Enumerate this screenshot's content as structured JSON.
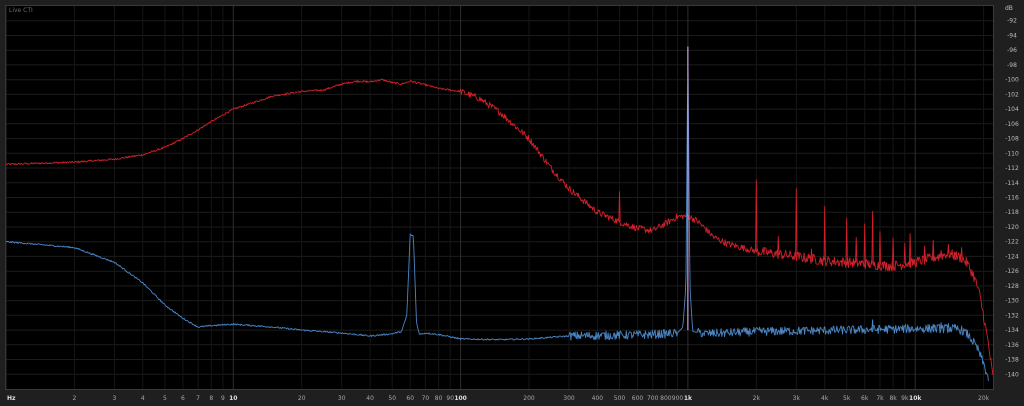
{
  "window": {
    "title": "Live CTI"
  },
  "chart_data": {
    "type": "line",
    "title": "Live CTI",
    "ylabel": "dB",
    "xscale": "log",
    "xlim": [
      1,
      22000
    ],
    "ylim": [
      -142,
      -90
    ],
    "grid": true,
    "legend": "none",
    "colors": {
      "red": "#d0202a",
      "blue": "#4a86c6"
    },
    "x_ticks": [
      {
        "v": 1,
        "label": "Hz",
        "major": true
      },
      {
        "v": 2,
        "label": "2"
      },
      {
        "v": 3,
        "label": "3"
      },
      {
        "v": 4,
        "label": "4"
      },
      {
        "v": 5,
        "label": "5"
      },
      {
        "v": 6,
        "label": "6"
      },
      {
        "v": 7,
        "label": "7"
      },
      {
        "v": 8,
        "label": "8"
      },
      {
        "v": 9,
        "label": "9"
      },
      {
        "v": 10,
        "label": "10",
        "major": true
      },
      {
        "v": 20,
        "label": "20"
      },
      {
        "v": 30,
        "label": "30"
      },
      {
        "v": 40,
        "label": "40"
      },
      {
        "v": 50,
        "label": "50"
      },
      {
        "v": 60,
        "label": "60"
      },
      {
        "v": 70,
        "label": "70"
      },
      {
        "v": 80,
        "label": "80"
      },
      {
        "v": 90,
        "label": "90"
      },
      {
        "v": 100,
        "label": "100",
        "major": true
      },
      {
        "v": 200,
        "label": "200"
      },
      {
        "v": 300,
        "label": "300"
      },
      {
        "v": 400,
        "label": "400"
      },
      {
        "v": 500,
        "label": "500"
      },
      {
        "v": 600,
        "label": "600"
      },
      {
        "v": 700,
        "label": "700"
      },
      {
        "v": 800,
        "label": "800"
      },
      {
        "v": 900,
        "label": "900"
      },
      {
        "v": 1000,
        "label": "1k",
        "major": true
      },
      {
        "v": 2000,
        "label": "2k"
      },
      {
        "v": 3000,
        "label": "3k"
      },
      {
        "v": 4000,
        "label": "4k"
      },
      {
        "v": 5000,
        "label": "5k"
      },
      {
        "v": 6000,
        "label": "6k"
      },
      {
        "v": 7000,
        "label": "7k"
      },
      {
        "v": 8000,
        "label": "8k"
      },
      {
        "v": 9000,
        "label": "9k"
      },
      {
        "v": 10000,
        "label": "10k",
        "major": true
      },
      {
        "v": 20000,
        "label": "20k"
      }
    ],
    "y_ticks": [
      -92,
      -94,
      -96,
      -98,
      -100,
      -102,
      -104,
      -106,
      -108,
      -110,
      -112,
      -114,
      -116,
      -118,
      -120,
      -122,
      -124,
      -126,
      -128,
      -130,
      -132,
      -134,
      -136,
      -138,
      -140
    ],
    "series": [
      {
        "color": "#d0202a",
        "x": [
          1,
          2,
          3,
          4,
          5,
          6,
          7,
          8,
          9,
          10,
          12,
          15,
          20,
          25,
          30,
          35,
          40,
          45,
          50,
          55,
          60,
          70,
          80,
          90,
          100,
          120,
          150,
          200,
          250,
          300,
          400,
          500,
          600,
          700,
          800,
          900,
          1000,
          1100,
          1200,
          1300,
          1500,
          2000,
          3000,
          4000,
          5000,
          6000,
          7000,
          8000,
          9000,
          10000,
          12000,
          14000,
          16000,
          17000,
          18000,
          19000,
          20000,
          21000,
          22000
        ],
        "y": [
          -111.5,
          -111.2,
          -110.8,
          -110.2,
          -109.2,
          -108,
          -106.8,
          -105.7,
          -104.8,
          -104,
          -103.2,
          -102.2,
          -101.6,
          -101.4,
          -100.6,
          -100.2,
          -100.3,
          -100,
          -100.4,
          -100.6,
          -100.2,
          -100.7,
          -101.2,
          -101.4,
          -101.6,
          -102.5,
          -104.5,
          -108,
          -112,
          -114.8,
          -118,
          -119.3,
          -120.2,
          -120.5,
          -119.5,
          -118.6,
          -118.5,
          -119.2,
          -120.3,
          -121.4,
          -122.3,
          -123.3,
          -124,
          -124.6,
          -124.8,
          -125,
          -125.2,
          -125.3,
          -125,
          -124.8,
          -124.2,
          -123.6,
          -124.2,
          -125,
          -126.5,
          -128.5,
          -132,
          -136,
          -140.5
        ]
      },
      {
        "color": "#4a86c6",
        "x": [
          1,
          2,
          3,
          4,
          5,
          6,
          7,
          8,
          10,
          15,
          20,
          30,
          40,
          50,
          55,
          58,
          60,
          62,
          64,
          66,
          70,
          80,
          100,
          150,
          200,
          300,
          500,
          700,
          900,
          950,
          980,
          1000,
          1020,
          1050,
          1200,
          2000,
          5000,
          10000,
          15000,
          16000,
          17000,
          18000,
          19000,
          20000,
          21000
        ],
        "y": [
          -122,
          -122.8,
          -124.8,
          -127.6,
          -130.6,
          -132.4,
          -133.6,
          -133.4,
          -133.2,
          -133.6,
          -134,
          -134.4,
          -134.8,
          -134.5,
          -134.2,
          -132,
          -121,
          -121.3,
          -133,
          -134.6,
          -134.4,
          -134.6,
          -135.2,
          -135.3,
          -135.2,
          -134.8,
          -134.7,
          -134.6,
          -134.4,
          -133.6,
          -128,
          -95.5,
          -128,
          -134.2,
          -134.5,
          -134.2,
          -134,
          -133.8,
          -133.8,
          -134,
          -134.6,
          -135.6,
          -136.8,
          -138.6,
          -140.6
        ]
      }
    ],
    "harmonics": [
      {
        "f": 500,
        "y": -115.2
      },
      {
        "f": 2000,
        "y": -113.6
      },
      {
        "f": 2500,
        "y": -121.3
      },
      {
        "f": 3000,
        "y": -114.8
      },
      {
        "f": 3500,
        "y": -123.0
      },
      {
        "f": 4000,
        "y": -117.2
      },
      {
        "f": 5000,
        "y": -118.8
      },
      {
        "f": 5500,
        "y": -121.4
      },
      {
        "f": 6000,
        "y": -119.6
      },
      {
        "f": 6500,
        "y": -117.9
      },
      {
        "f": 7000,
        "y": -120.6
      },
      {
        "f": 8000,
        "y": -121.5
      },
      {
        "f": 9000,
        "y": -122.2
      },
      {
        "f": 9500,
        "y": -120.9
      },
      {
        "f": 11000,
        "y": -122.6
      },
      {
        "f": 12000,
        "y": -121.8
      },
      {
        "f": 13000,
        "y": -123.2
      },
      {
        "f": 14000,
        "y": -122.4
      },
      {
        "f": 15000,
        "y": -123.5
      },
      {
        "f": 16000,
        "y": -122.8
      }
    ],
    "blue_spurs": [
      {
        "f": 6500,
        "y": -132.6
      },
      {
        "f": 12000,
        "y": -133.2
      },
      {
        "f": 13000,
        "y": -133.0
      },
      {
        "f": 14000,
        "y": -133.1
      },
      {
        "f": 15000,
        "y": -133.3
      }
    ],
    "fundamental_tip_y": -95.5
  }
}
